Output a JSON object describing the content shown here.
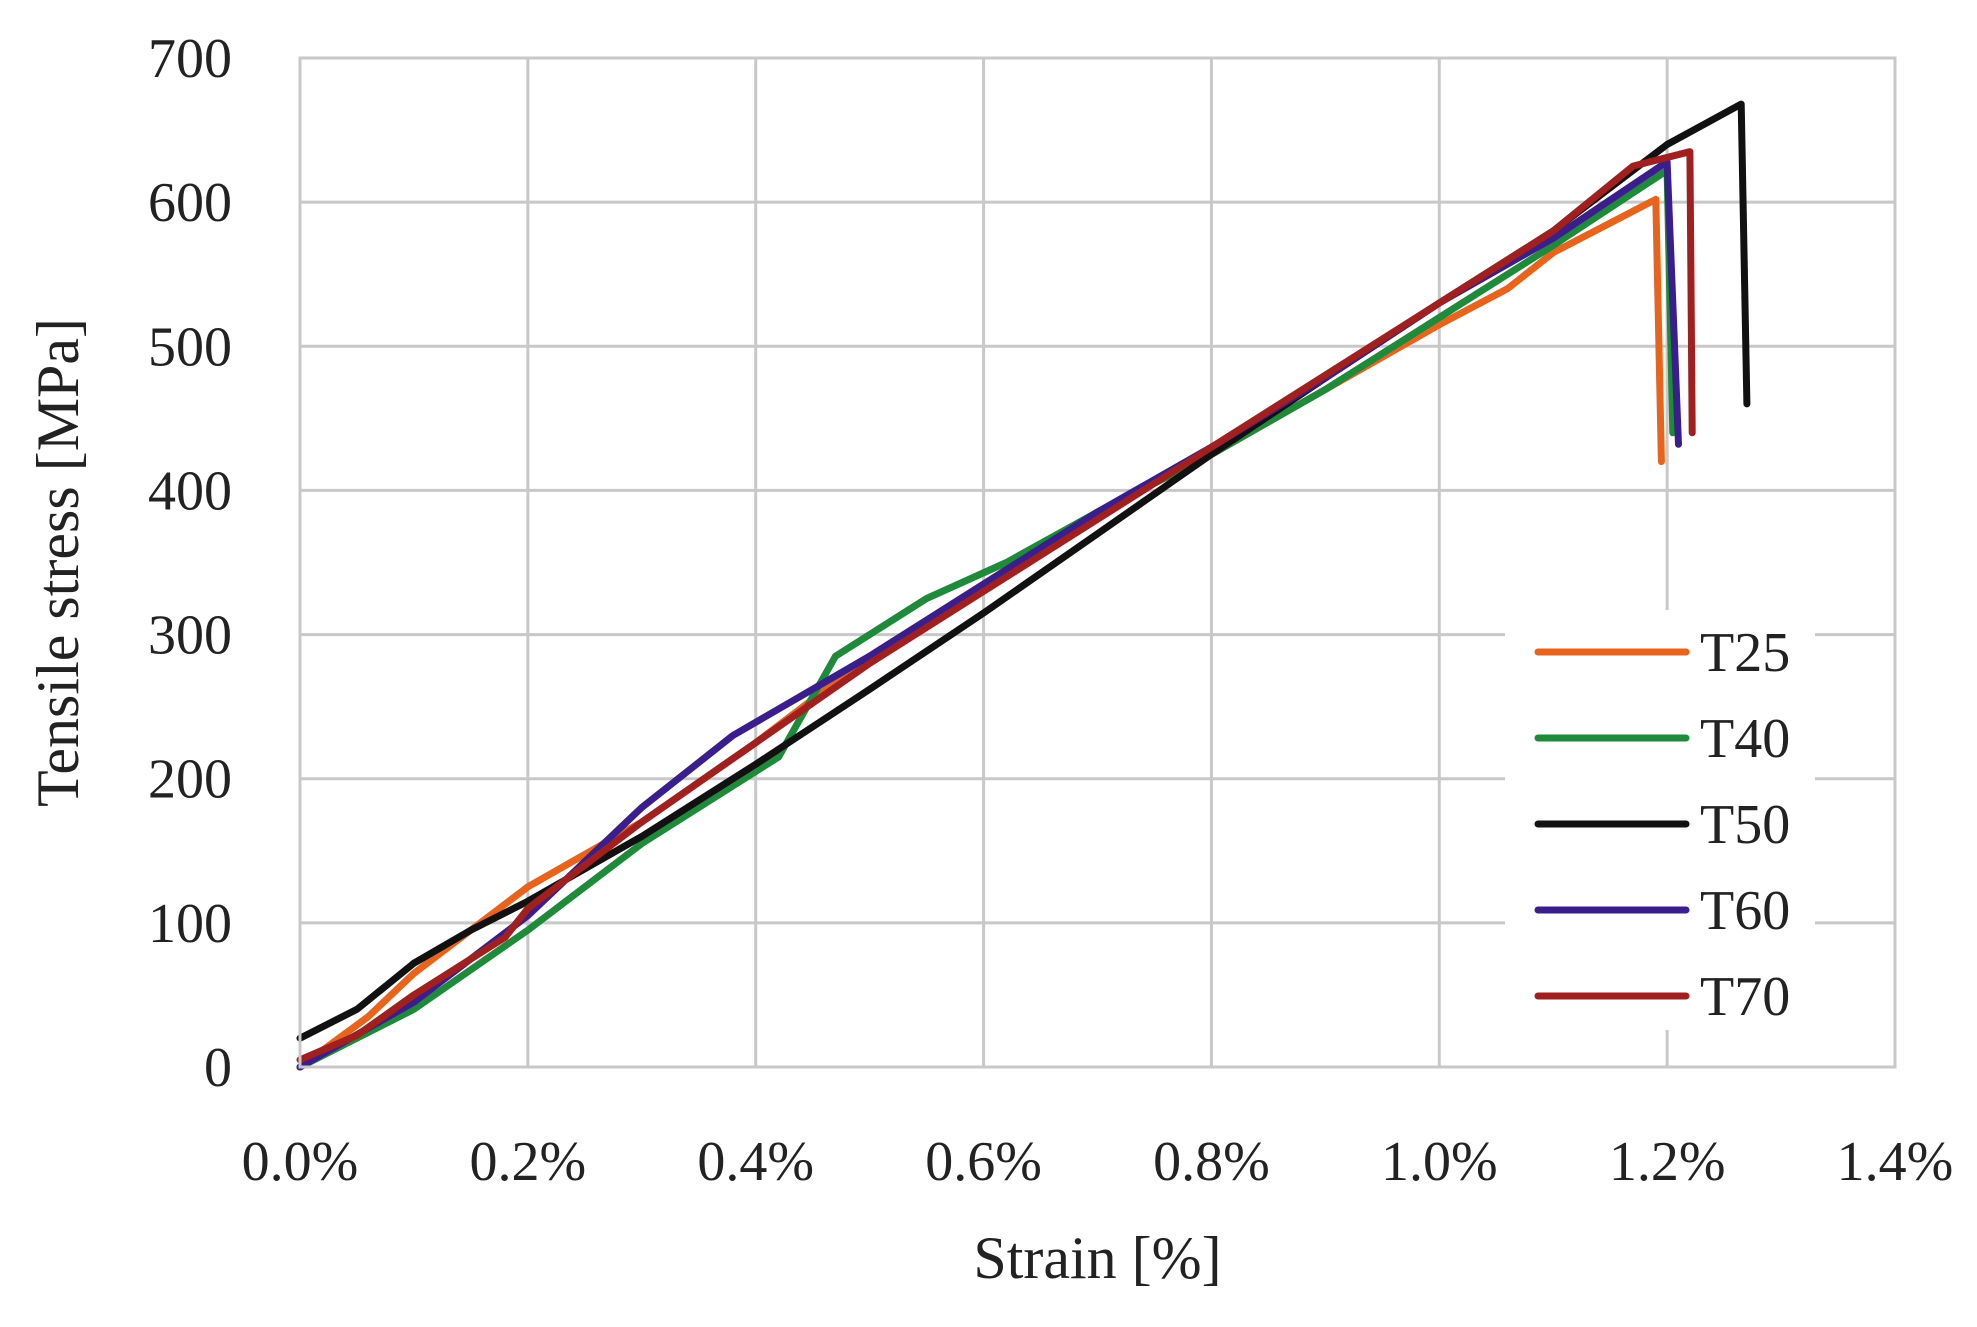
{
  "chart_data": {
    "type": "line",
    "title": "",
    "xlabel": "Strain [%]",
    "ylabel": "Tensile stress [MPa]",
    "xlim": [
      0.0,
      1.4
    ],
    "ylim": [
      0,
      700
    ],
    "x_unit": "%",
    "x_ticks": [
      0.0,
      0.2,
      0.4,
      0.6,
      0.8,
      1.0,
      1.2,
      1.4
    ],
    "x_tick_labels": [
      "0.0%",
      "0.2%",
      "0.4%",
      "0.6%",
      "0.8%",
      "1.0%",
      "1.2%",
      "1.4%"
    ],
    "y_ticks": [
      0,
      100,
      200,
      300,
      400,
      500,
      600,
      700
    ],
    "y_tick_labels": [
      "0",
      "100",
      "200",
      "300",
      "400",
      "500",
      "600",
      "700"
    ],
    "grid": true,
    "legend_position": "bottom-right",
    "series": [
      {
        "name": "T25",
        "color": "#e8631c",
        "points": [
          [
            0.0,
            0
          ],
          [
            0.06,
            35
          ],
          [
            0.1,
            65
          ],
          [
            0.15,
            95
          ],
          [
            0.2,
            125
          ],
          [
            0.3,
            170
          ],
          [
            0.4,
            225
          ],
          [
            0.5,
            285
          ],
          [
            0.6,
            335
          ],
          [
            0.7,
            385
          ],
          [
            0.8,
            425
          ],
          [
            0.9,
            470
          ],
          [
            1.0,
            515
          ],
          [
            1.06,
            540
          ],
          [
            1.1,
            565
          ],
          [
            1.19,
            602
          ],
          [
            1.195,
            420
          ]
        ]
      },
      {
        "name": "T40",
        "color": "#1e8a3a",
        "points": [
          [
            0.0,
            0
          ],
          [
            0.1,
            40
          ],
          [
            0.2,
            95
          ],
          [
            0.3,
            155
          ],
          [
            0.42,
            215
          ],
          [
            0.47,
            285
          ],
          [
            0.55,
            325
          ],
          [
            0.62,
            350
          ],
          [
            0.7,
            385
          ],
          [
            0.8,
            425
          ],
          [
            0.9,
            470
          ],
          [
            1.0,
            520
          ],
          [
            1.1,
            570
          ],
          [
            1.2,
            622
          ],
          [
            1.205,
            440
          ]
        ]
      },
      {
        "name": "T50",
        "color": "#111111",
        "points": [
          [
            0.0,
            20
          ],
          [
            0.05,
            40
          ],
          [
            0.1,
            72
          ],
          [
            0.15,
            95
          ],
          [
            0.2,
            115
          ],
          [
            0.3,
            160
          ],
          [
            0.4,
            210
          ],
          [
            0.5,
            262
          ],
          [
            0.6,
            315
          ],
          [
            0.7,
            370
          ],
          [
            0.8,
            425
          ],
          [
            0.9,
            478
          ],
          [
            1.0,
            530
          ],
          [
            1.1,
            580
          ],
          [
            1.2,
            640
          ],
          [
            1.265,
            668
          ],
          [
            1.27,
            460
          ]
        ]
      },
      {
        "name": "T60",
        "color": "#3a1e8c",
        "points": [
          [
            0.0,
            0
          ],
          [
            0.1,
            45
          ],
          [
            0.2,
            105
          ],
          [
            0.3,
            180
          ],
          [
            0.38,
            230
          ],
          [
            0.5,
            285
          ],
          [
            0.6,
            335
          ],
          [
            0.7,
            385
          ],
          [
            0.8,
            430
          ],
          [
            0.9,
            478
          ],
          [
            1.0,
            530
          ],
          [
            1.1,
            575
          ],
          [
            1.2,
            628
          ],
          [
            1.21,
            432
          ]
        ]
      },
      {
        "name": "T70",
        "color": "#a01f1f",
        "points": [
          [
            0.0,
            5
          ],
          [
            0.05,
            22
          ],
          [
            0.1,
            50
          ],
          [
            0.18,
            90
          ],
          [
            0.2,
            110
          ],
          [
            0.3,
            170
          ],
          [
            0.4,
            225
          ],
          [
            0.5,
            280
          ],
          [
            0.6,
            330
          ],
          [
            0.7,
            380
          ],
          [
            0.8,
            430
          ],
          [
            0.9,
            480
          ],
          [
            1.0,
            530
          ],
          [
            1.1,
            580
          ],
          [
            1.17,
            625
          ],
          [
            1.22,
            635
          ],
          [
            1.222,
            440
          ]
        ]
      }
    ]
  }
}
